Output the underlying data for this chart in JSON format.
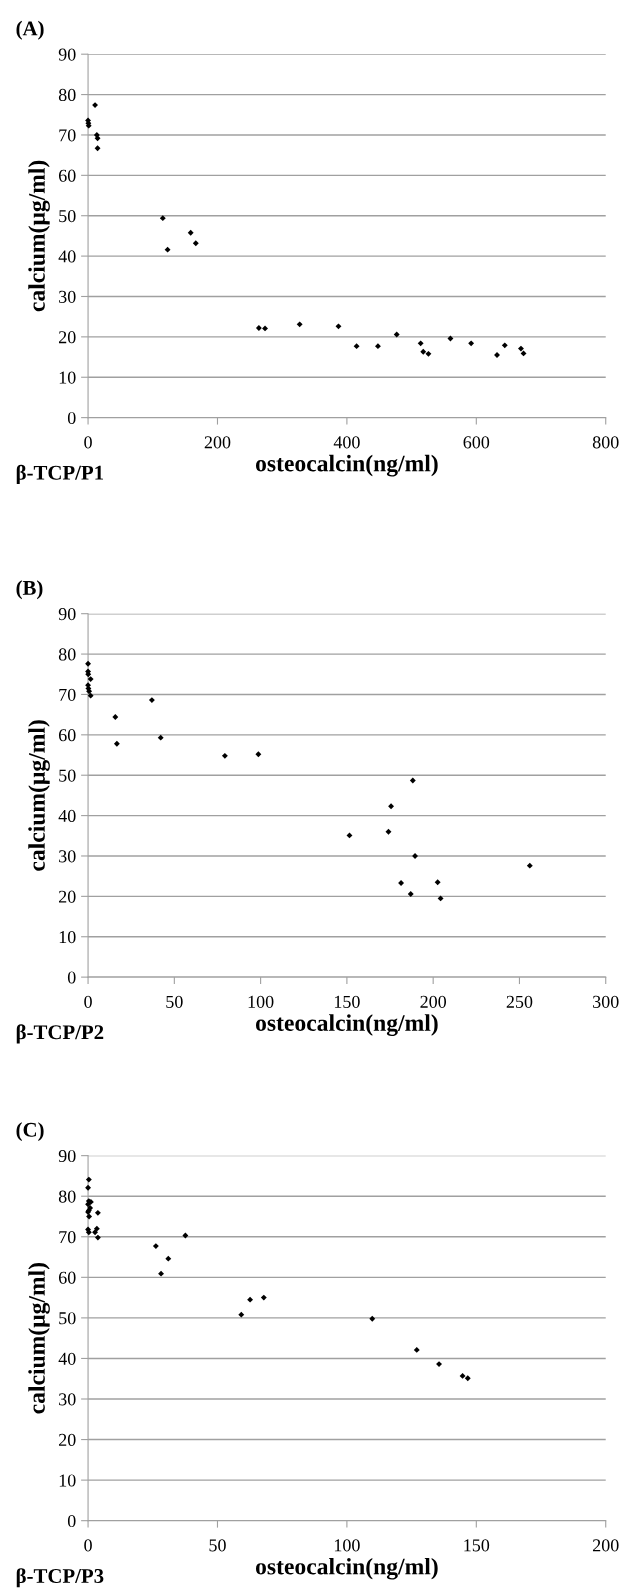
{
  "chart_data": [
    {
      "type": "scatter",
      "title": "(A)",
      "xlabel": "osteocalcin(ng/ml)",
      "ylabel": "calcium(μg/ml)",
      "annotations": [
        "β-TCP/P1"
      ],
      "marker": "diamond",
      "color": "#000000",
      "grid": "y",
      "x": [
        0,
        0.5,
        1,
        10.8,
        13.6,
        14.7,
        14.7,
        115.5,
        122.9,
        158.6,
        166.5,
        264,
        273.5,
        327,
        387,
        415,
        448,
        477,
        514,
        518,
        526,
        560,
        592,
        632,
        644,
        669,
        673
      ],
      "values": [
        73.6,
        72.9,
        72.3,
        77.4,
        70.0,
        69.2,
        66.7,
        49.4,
        41.6,
        45.8,
        43.2,
        22.2,
        22.1,
        23.1,
        22.6,
        17.7,
        17.7,
        20.6,
        18.4,
        16.3,
        15.8,
        19.6,
        18.4,
        15.5,
        17.9,
        17.1,
        15.9
      ],
      "xlim": [
        0,
        800
      ],
      "xticks": [
        0,
        200,
        400,
        600,
        800
      ],
      "ylim": [
        0,
        90
      ],
      "yticks": [
        0,
        10,
        20,
        30,
        40,
        50,
        60,
        70,
        80,
        90
      ]
    },
    {
      "type": "scatter",
      "title": "(B)",
      "xlabel": "osteocalcin(ng/ml)",
      "ylabel": "calcium(μg/ml)",
      "annotations": [
        "β-TCP/P2"
      ],
      "marker": "diamond",
      "color": "#000000",
      "grid": "y",
      "x": [
        0,
        0,
        0.1,
        1.5,
        0,
        0.2,
        0.6,
        1.5,
        15.8,
        16.7,
        37,
        42.1,
        79.3,
        98.7,
        151.5,
        174.1,
        175.6,
        188.2,
        189.5,
        181.4,
        187,
        202.6,
        204.3,
        256
      ],
      "values": [
        77.6,
        75.7,
        75.0,
        73.8,
        72.3,
        71.5,
        70.8,
        69.7,
        64.4,
        57.8,
        68.6,
        59.3,
        54.8,
        55.2,
        35.1,
        36.0,
        42.3,
        48.7,
        30.0,
        23.3,
        20.6,
        23.5,
        19.5,
        27.6
      ],
      "xlim": [
        0,
        300
      ],
      "xticks": [
        0,
        50,
        100,
        150,
        200,
        250,
        300
      ],
      "ylim": [
        0,
        90
      ],
      "yticks": [
        0,
        10,
        20,
        30,
        40,
        50,
        60,
        70,
        80,
        90
      ]
    },
    {
      "type": "scatter",
      "title": "(C)",
      "xlabel": "osteocalcin(ng/ml)",
      "ylabel": "calcium(μg/ml)",
      "annotations": [
        "β-TCP/P3"
      ],
      "marker": "diamond",
      "color": "#000000",
      "grid": "y",
      "x": [
        0.3,
        0,
        0.3,
        1.1,
        0,
        0.8,
        0.3,
        0,
        3.8,
        0.4,
        0,
        3.4,
        0.3,
        2.7,
        3.8,
        26.2,
        28.2,
        31,
        37.6,
        59.2,
        62.6,
        67.9,
        109.8,
        127,
        135.6,
        144.7,
        146.7
      ],
      "values": [
        84.1,
        82.1,
        78.8,
        78.6,
        78.0,
        77.1,
        76.5,
        76.1,
        75.9,
        75.0,
        71.8,
        72.0,
        71.1,
        71.1,
        69.8,
        67.7,
        60.9,
        64.6,
        70.3,
        50.8,
        54.5,
        55.0,
        49.8,
        42.1,
        38.6,
        35.7,
        35.1
      ],
      "xlim": [
        0,
        200
      ],
      "xticks": [
        0,
        50,
        100,
        150,
        200
      ],
      "ylim": [
        0,
        90
      ],
      "yticks": [
        0,
        10,
        20,
        30,
        40,
        50,
        60,
        70,
        80,
        90
      ]
    }
  ]
}
